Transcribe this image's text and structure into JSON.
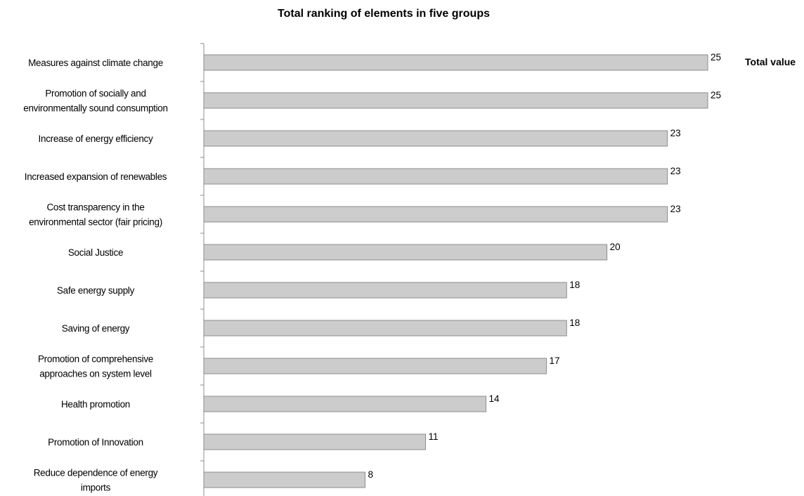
{
  "chart_data": {
    "type": "bar",
    "orientation": "horizontal",
    "title": "Total ranking of elements in five groups",
    "legend": "Total value",
    "legend_position": "right",
    "grid": false,
    "bar_color": "#cccccc",
    "bar_edge_color": "#8c8c8c",
    "xlim": [
      0,
      25
    ],
    "categories": [
      [
        "Measures against climate change"
      ],
      [
        "Promotion of socially and",
        "environmentally sound consumption"
      ],
      [
        "Increase of energy efficiency"
      ],
      [
        "Increased expansion of renewables"
      ],
      [
        "Cost transparency in the",
        "environmental sector (fair pricing)"
      ],
      [
        "Social Justice"
      ],
      [
        "Safe energy supply"
      ],
      [
        "Saving of energy"
      ],
      [
        "Promotion of comprehensive",
        "approaches on system level"
      ],
      [
        "Health promotion"
      ],
      [
        "Promotion of Innovation"
      ],
      [
        "Reduce dependence of energy",
        "imports"
      ]
    ],
    "values": [
      25,
      25,
      23,
      23,
      23,
      20,
      18,
      18,
      17,
      14,
      11,
      8
    ]
  }
}
